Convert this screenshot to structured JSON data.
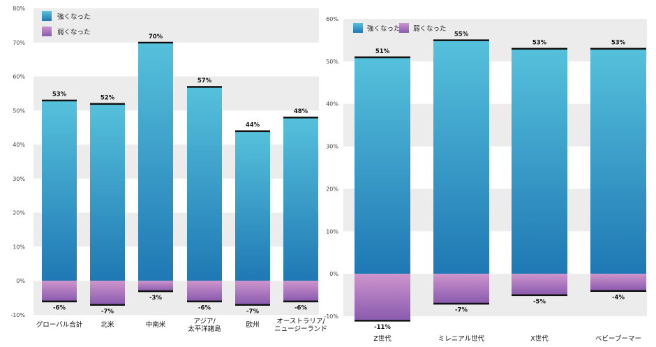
{
  "colors": {
    "positive_top": "#56c1dc",
    "positive_bottom": "#1f78b4",
    "negative_top": "#d49ad0",
    "negative_bottom": "#8a5bb0",
    "band": "#ececec",
    "cap": "#111111"
  },
  "chart_data": [
    {
      "type": "bar",
      "stacked": true,
      "legend": {
        "placement": "top-left",
        "entries": [
          "強くなった",
          "弱くなった"
        ]
      },
      "categories": [
        "グローバル合計",
        "北米",
        "中南米",
        "アジア/\n太平洋諸島",
        "欧州",
        "オーストラリア/\nニュージーランド"
      ],
      "series": [
        {
          "name": "強くなった",
          "values": [
            53,
            52,
            70,
            57,
            44,
            48
          ]
        },
        {
          "name": "弱くなった",
          "values": [
            -6,
            -7,
            -3,
            -6,
            -7,
            -6
          ]
        }
      ],
      "data_labels": {
        "positive": [
          "53%",
          "52%",
          "70%",
          "57%",
          "44%",
          "48%"
        ],
        "negative": [
          "-6%",
          "-7%",
          "-3%",
          "-6%",
          "-7%",
          "-6%"
        ]
      },
      "ylim": [
        -10,
        80
      ],
      "yticks": [
        "-10%",
        "0%",
        "10%",
        "20%",
        "30%",
        "40%",
        "50%",
        "60%",
        "70%",
        "80%"
      ],
      "grid": "alternating bands"
    },
    {
      "type": "bar",
      "stacked": true,
      "legend": {
        "placement": "top-left",
        "entries": [
          "強くなった",
          "弱くなった"
        ]
      },
      "categories": [
        "Z世代",
        "ミレニアル世代",
        "X世代",
        "ベビーブーマー"
      ],
      "series": [
        {
          "name": "強くなった",
          "values": [
            51,
            55,
            53,
            53
          ]
        },
        {
          "name": "弱くなった",
          "values": [
            -11,
            -7,
            -5,
            -4
          ]
        }
      ],
      "data_labels": {
        "positive": [
          "51%",
          "55%",
          "53%",
          "53%"
        ],
        "negative": [
          "-11%",
          "-7%",
          "-5%",
          "-4%"
        ]
      },
      "ylim": [
        -10,
        60
      ],
      "yticks": [
        "-10%",
        "0%",
        "10%",
        "20%",
        "30%",
        "40%",
        "50%",
        "60%"
      ],
      "grid": "alternating bands"
    }
  ]
}
